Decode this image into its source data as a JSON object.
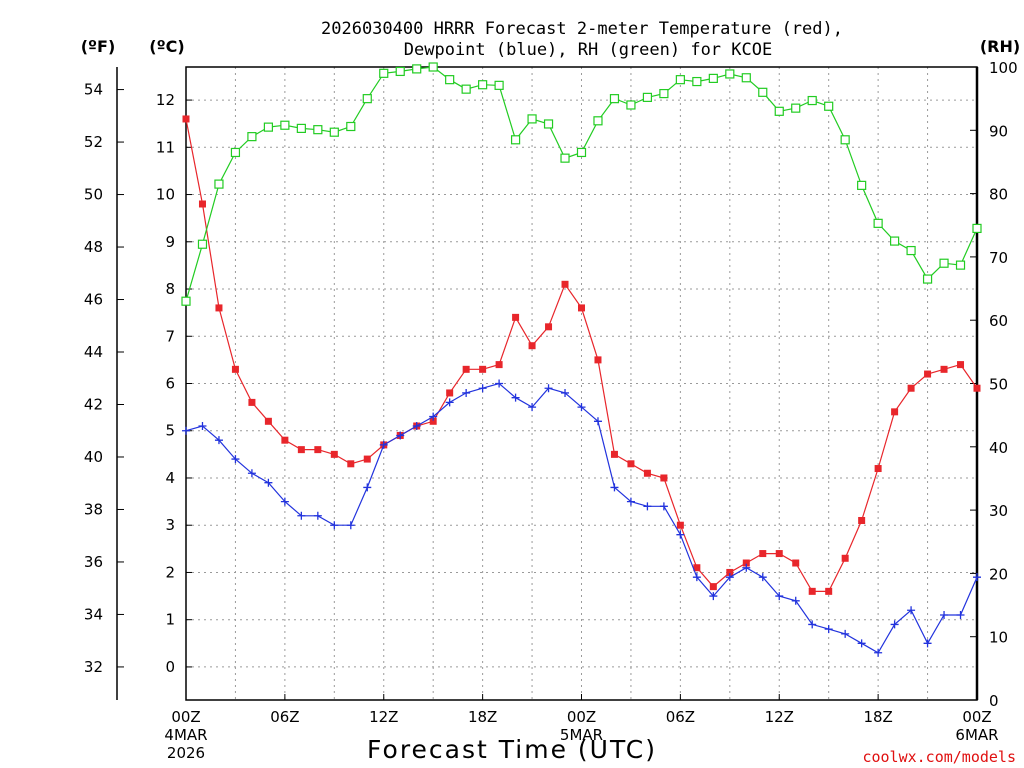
{
  "title_line1": "2026030400 HRRR Forecast 2-meter Temperature (red),",
  "title_line2": "Dewpoint (blue), RH (green) for KCOE",
  "unit_f": "(ºF)",
  "unit_c": "(ºC)",
  "unit_rh": "(RH)",
  "credit": "coolwx.com/models",
  "colors": {
    "temp": "#e8262b",
    "dewpoint": "#2233dd",
    "rh": "#22cc22",
    "grid": "#9a9a9a"
  },
  "chart_data": {
    "type": "line",
    "title": "2026030400 HRRR Forecast 2-meter Temperature (red), Dewpoint (blue), RH (green) for KCOE",
    "xlabel": "Forecast Time (UTC)",
    "x_hours": [
      0,
      1,
      2,
      3,
      4,
      5,
      6,
      7,
      8,
      9,
      10,
      11,
      12,
      13,
      14,
      15,
      16,
      17,
      18,
      19,
      20,
      21,
      22,
      23,
      24,
      25,
      26,
      27,
      28,
      29,
      30,
      31,
      32,
      33,
      34,
      35,
      36,
      37,
      38,
      39,
      40,
      41,
      42,
      43,
      44,
      45,
      46,
      47,
      48
    ],
    "x_ticks": [
      {
        "hour": 0,
        "label": "00Z",
        "sub1": "4MAR",
        "sub2": "2026"
      },
      {
        "hour": 6,
        "label": "06Z"
      },
      {
        "hour": 12,
        "label": "12Z"
      },
      {
        "hour": 18,
        "label": "18Z"
      },
      {
        "hour": 24,
        "label": "00Z",
        "sub1": "5MAR"
      },
      {
        "hour": 30,
        "label": "06Z"
      },
      {
        "hour": 36,
        "label": "12Z"
      },
      {
        "hour": 42,
        "label": "18Z"
      },
      {
        "hour": 48,
        "label": "00Z",
        "sub1": "6MAR"
      }
    ],
    "y_celsius": {
      "label": "(ºC)",
      "range": [
        -0.7,
        12.7
      ],
      "ticks": [
        0,
        1,
        2,
        3,
        4,
        5,
        6,
        7,
        8,
        9,
        10,
        11,
        12
      ]
    },
    "y_fahrenheit": {
      "label": "(ºF)",
      "ticks": [
        32,
        34,
        36,
        38,
        40,
        42,
        44,
        46,
        48,
        50,
        52,
        54
      ]
    },
    "y_rh": {
      "label": "(RH)",
      "range": [
        0,
        100
      ],
      "ticks": [
        0,
        10,
        20,
        30,
        40,
        50,
        60,
        70,
        80,
        90,
        100
      ]
    },
    "series": [
      {
        "name": "Temperature (°C)",
        "color": "red",
        "marker": "filled-square",
        "values": [
          11.6,
          9.8,
          7.6,
          6.3,
          5.6,
          5.2,
          4.8,
          4.6,
          4.6,
          4.5,
          4.3,
          4.4,
          4.7,
          4.9,
          5.1,
          5.2,
          5.8,
          6.3,
          6.3,
          6.4,
          7.4,
          6.8,
          7.2,
          8.1,
          7.6,
          6.5,
          4.5,
          4.3,
          4.1,
          4.0,
          3.0,
          2.1,
          1.7,
          2.0,
          2.2,
          2.4,
          2.4,
          2.2,
          1.6,
          1.6,
          2.3,
          3.1,
          4.2,
          5.4,
          5.9,
          6.2,
          6.3,
          6.4,
          5.9
        ]
      },
      {
        "name": "Dewpoint (°C)",
        "color": "blue",
        "marker": "plus",
        "values": [
          5.0,
          5.1,
          4.8,
          4.4,
          4.1,
          3.9,
          3.5,
          3.2,
          3.2,
          3.0,
          3.0,
          3.8,
          4.7,
          4.9,
          5.1,
          5.3,
          5.6,
          5.8,
          5.9,
          6.0,
          5.7,
          5.5,
          5.9,
          5.8,
          5.5,
          5.2,
          3.8,
          3.5,
          3.4,
          3.4,
          2.8,
          1.9,
          1.5,
          1.9,
          2.1,
          1.9,
          1.5,
          1.4,
          0.9,
          0.8,
          0.7,
          0.5,
          0.3,
          0.9,
          1.2,
          0.5,
          1.1,
          1.1,
          1.9
        ]
      },
      {
        "name": "RH (%)",
        "color": "green",
        "marker": "open-square",
        "values": [
          63,
          72,
          81.5,
          86.5,
          89,
          90.5,
          90.8,
          90.3,
          90.1,
          89.7,
          90.6,
          95,
          99,
          99.3,
          99.7,
          100,
          98,
          96.5,
          97.2,
          97.1,
          88.5,
          91.8,
          91,
          85.6,
          86.5,
          91.5,
          95,
          94,
          95.2,
          95.8,
          98,
          97.7,
          98.2,
          98.9,
          98.3,
          96,
          93,
          93.5,
          94.7,
          93.8,
          88.5,
          81.3,
          75.3,
          72.5,
          71,
          66.5,
          69,
          68.7,
          74.5
        ]
      }
    ]
  }
}
